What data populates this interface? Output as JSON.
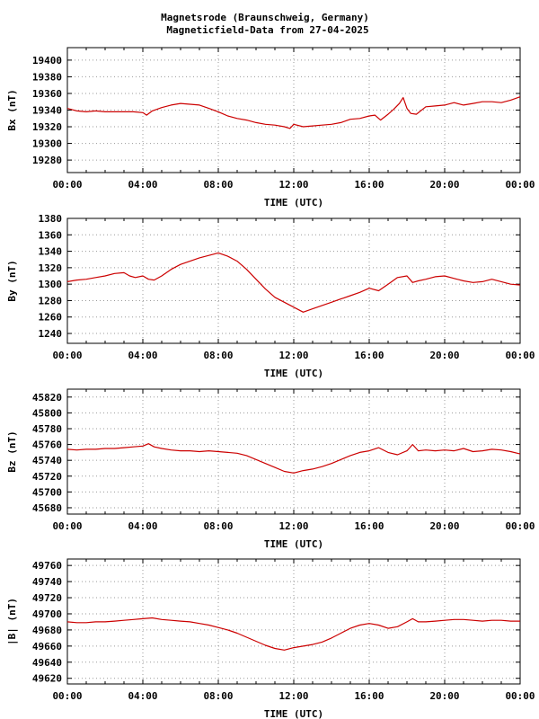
{
  "title_line1": "Magnetsrode (Braunschweig, Germany)",
  "title_line2": "Magneticfield-Data from 27-04-2025",
  "colors": {
    "series": "#cc0000",
    "grid": "#9a9a9a",
    "axis": "#000000"
  },
  "chart_data": [
    {
      "type": "line",
      "xlabel": "TIME (UTC)",
      "ylabel": "Bx (nT)",
      "xticks": [
        "00:00",
        "04:00",
        "08:00",
        "12:00",
        "16:00",
        "20:00",
        "00:00"
      ],
      "yticks": [
        19280,
        19300,
        19320,
        19340,
        19360,
        19380,
        19400
      ],
      "ylim": [
        19265,
        19415
      ],
      "xlim": [
        0,
        24
      ],
      "grid": true,
      "series": [
        {
          "x": [
            0,
            0.5,
            1,
            1.5,
            2,
            2.5,
            3,
            3.5,
            4,
            4.2,
            4.5,
            5,
            5.5,
            6,
            6.5,
            7,
            7.5,
            8,
            8.5,
            9,
            9.5,
            10,
            10.5,
            11,
            11.5,
            11.8,
            12,
            12.5,
            13,
            13.5,
            14,
            14.5,
            15,
            15.5,
            16,
            16.3,
            16.6,
            17,
            17.3,
            17.6,
            17.8,
            18,
            18.2,
            18.5,
            19,
            19.5,
            20,
            20.5,
            21,
            21.5,
            22,
            22.5,
            23,
            23.5,
            24
          ],
          "y": [
            19342,
            19339,
            19338,
            19339,
            19338,
            19338,
            19338,
            19338,
            19337,
            19334,
            19339,
            19343,
            19346,
            19348,
            19347,
            19346,
            19342,
            19338,
            19333,
            19330,
            19328,
            19325,
            19323,
            19322,
            19320,
            19318,
            19323,
            19320,
            19321,
            19322,
            19323,
            19325,
            19329,
            19330,
            19333,
            19334,
            19328,
            19335,
            19341,
            19348,
            19355,
            19342,
            19336,
            19335,
            19344,
            19345,
            19346,
            19349,
            19346,
            19348,
            19350,
            19350,
            19349,
            19352,
            19356
          ]
        }
      ]
    },
    {
      "type": "line",
      "xlabel": "TIME (UTC)",
      "ylabel": "By (nT)",
      "xticks": [
        "00:00",
        "04:00",
        "08:00",
        "12:00",
        "16:00",
        "20:00",
        "00:00"
      ],
      "yticks": [
        1240,
        1260,
        1280,
        1300,
        1320,
        1340,
        1360,
        1380
      ],
      "ylim": [
        1228,
        1380
      ],
      "xlim": [
        0,
        24
      ],
      "grid": true,
      "series": [
        {
          "x": [
            0,
            0.5,
            1,
            1.5,
            2,
            2.5,
            3,
            3.3,
            3.6,
            4,
            4.3,
            4.6,
            5,
            5.5,
            6,
            6.5,
            7,
            7.5,
            8,
            8.5,
            9,
            9.5,
            10,
            10.5,
            11,
            11.5,
            12,
            12.5,
            13,
            13.5,
            14,
            14.5,
            15,
            15.5,
            16,
            16.5,
            17,
            17.5,
            18,
            18.3,
            18.6,
            19,
            19.5,
            20,
            20.5,
            21,
            21.5,
            22,
            22.5,
            23,
            23.5,
            24
          ],
          "y": [
            1303,
            1305,
            1306,
            1308,
            1310,
            1313,
            1314,
            1310,
            1308,
            1310,
            1306,
            1305,
            1310,
            1318,
            1324,
            1328,
            1332,
            1335,
            1338,
            1334,
            1328,
            1318,
            1306,
            1294,
            1284,
            1278,
            1272,
            1266,
            1270,
            1274,
            1278,
            1282,
            1286,
            1290,
            1295,
            1292,
            1300,
            1308,
            1310,
            1302,
            1304,
            1306,
            1309,
            1310,
            1307,
            1304,
            1302,
            1303,
            1306,
            1303,
            1300,
            1299
          ]
        }
      ]
    },
    {
      "type": "line",
      "xlabel": "TIME (UTC)",
      "ylabel": "Bz (nT)",
      "xticks": [
        "00:00",
        "04:00",
        "08:00",
        "12:00",
        "16:00",
        "20:00",
        "00:00"
      ],
      "yticks": [
        45680,
        45700,
        45720,
        45740,
        45760,
        45780,
        45800,
        45820
      ],
      "ylim": [
        45672,
        45830
      ],
      "xlim": [
        0,
        24
      ],
      "grid": true,
      "series": [
        {
          "x": [
            0,
            0.5,
            1,
            1.5,
            2,
            2.5,
            3,
            3.5,
            4,
            4.3,
            4.6,
            5,
            5.5,
            6,
            6.5,
            7,
            7.5,
            8,
            8.5,
            9,
            9.5,
            10,
            10.5,
            11,
            11.5,
            12,
            12.5,
            13,
            13.5,
            14,
            14.5,
            15,
            15.5,
            16,
            16.5,
            17,
            17.5,
            18,
            18.3,
            18.6,
            19,
            19.5,
            20,
            20.5,
            21,
            21.5,
            22,
            22.5,
            23,
            23.5,
            24
          ],
          "y": [
            45754,
            45753,
            45754,
            45754,
            45755,
            45755,
            45756,
            45757,
            45758,
            45761,
            45757,
            45755,
            45753,
            45752,
            45752,
            45751,
            45752,
            45751,
            45750,
            45749,
            45746,
            45741,
            45736,
            45731,
            45726,
            45724,
            45727,
            45729,
            45732,
            45736,
            45741,
            45746,
            45750,
            45752,
            45756,
            45750,
            45747,
            45752,
            45760,
            45752,
            45753,
            45752,
            45753,
            45752,
            45755,
            45751,
            45752,
            45754,
            45753,
            45751,
            45748
          ]
        }
      ]
    },
    {
      "type": "line",
      "xlabel": "TIME (UTC)",
      "ylabel": "|B| (nT)",
      "xticks": [
        "00:00",
        "04:00",
        "08:00",
        "12:00",
        "16:00",
        "20:00",
        "00:00"
      ],
      "yticks": [
        49620,
        49640,
        49660,
        49680,
        49700,
        49720,
        49740,
        49760
      ],
      "ylim": [
        49613,
        49768
      ],
      "xlim": [
        0,
        24
      ],
      "grid": true,
      "series": [
        {
          "x": [
            0,
            0.5,
            1,
            1.5,
            2,
            2.5,
            3,
            3.5,
            4,
            4.5,
            5,
            5.5,
            6,
            6.5,
            7,
            7.5,
            8,
            8.5,
            9,
            9.5,
            10,
            10.5,
            11,
            11.5,
            12,
            12.5,
            13,
            13.5,
            14,
            14.5,
            15,
            15.5,
            16,
            16.5,
            17,
            17.5,
            18,
            18.3,
            18.6,
            19,
            19.5,
            20,
            20.5,
            21,
            21.5,
            22,
            22.5,
            23,
            23.5,
            24
          ],
          "y": [
            49690,
            49689,
            49689,
            49690,
            49690,
            49691,
            49692,
            49693,
            49694,
            49695,
            49693,
            49692,
            49691,
            49690,
            49688,
            49686,
            49683,
            49680,
            49676,
            49671,
            49666,
            49661,
            49657,
            49655,
            49658,
            49660,
            49662,
            49665,
            49670,
            49676,
            49682,
            49686,
            49688,
            49686,
            49682,
            49684,
            49690,
            49694,
            49690,
            49690,
            49691,
            49692,
            49693,
            49693,
            49692,
            49691,
            49692,
            49692,
            49691,
            49691
          ]
        }
      ]
    }
  ]
}
